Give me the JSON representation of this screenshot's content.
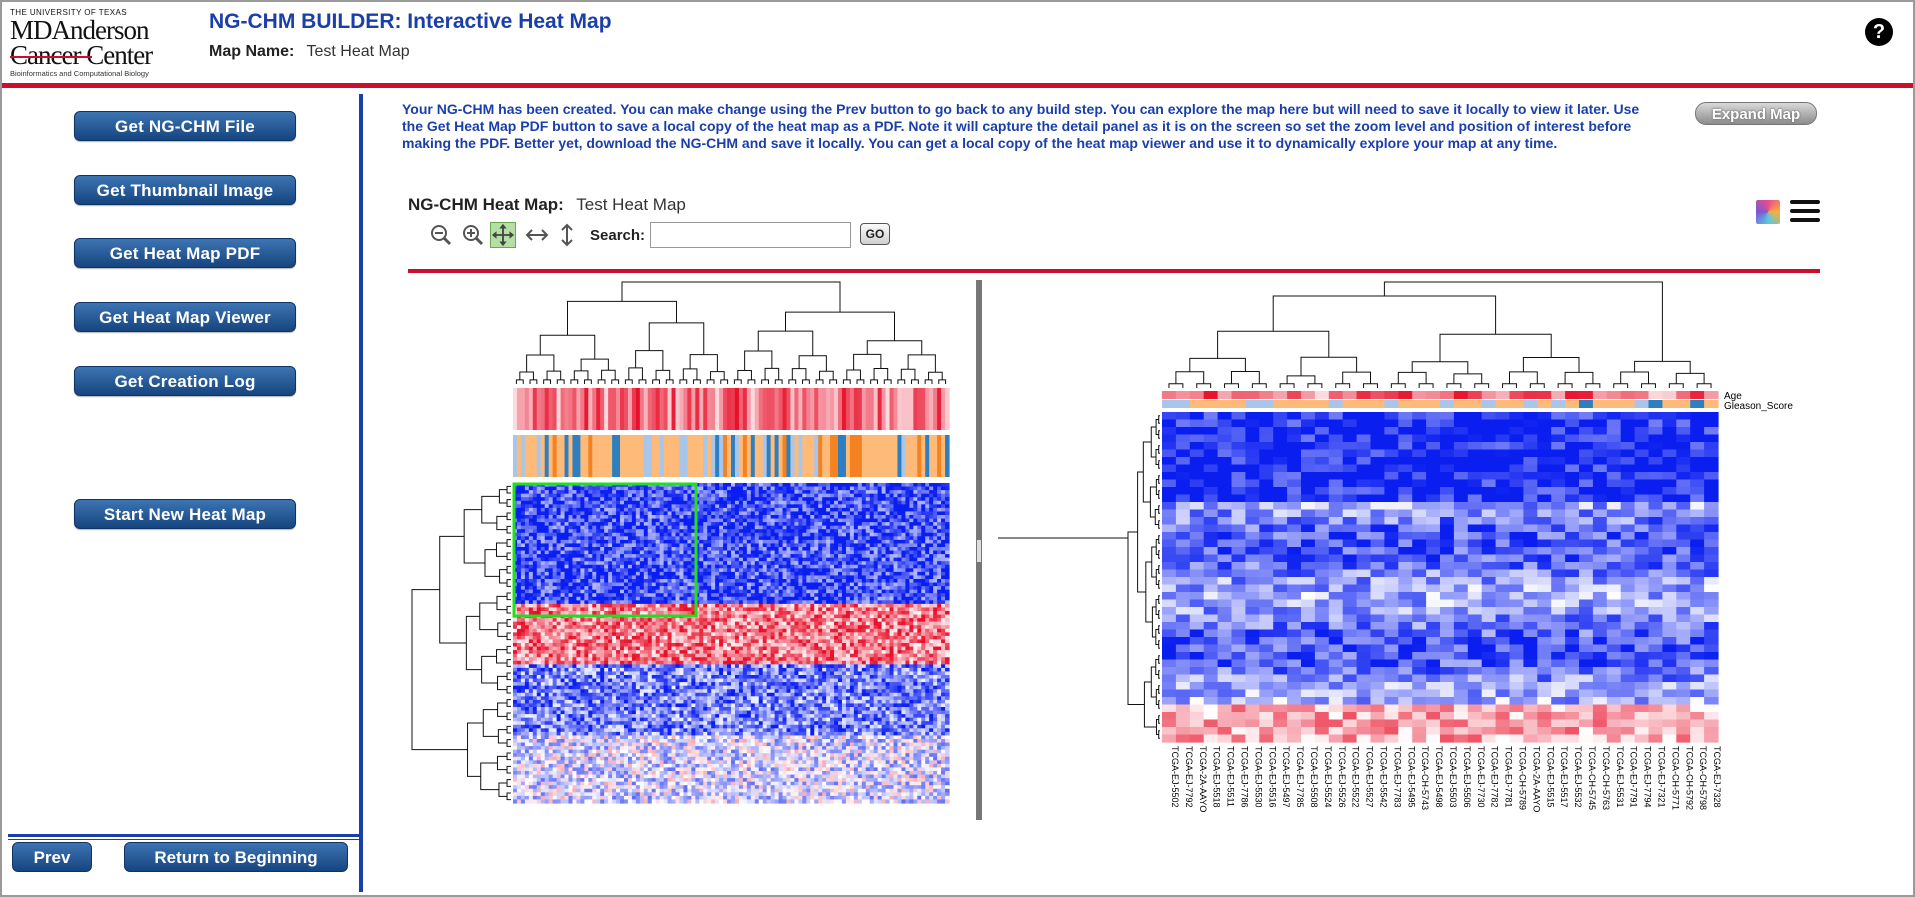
{
  "header": {
    "logo": {
      "line1": "THE UNIVERSITY OF TEXAS",
      "line2": "MDAnderson",
      "line3": "Cancer Center",
      "line4": "Bioinformatics and Computational Biology"
    },
    "title": "NG-CHM BUILDER: Interactive Heat Map",
    "map_name_label": "Map Name:",
    "map_name_value": "Test Heat Map",
    "help_label": "?"
  },
  "sidebar": {
    "buttons": [
      {
        "label": "Get NG-CHM File"
      },
      {
        "label": "Get Thumbnail Image"
      },
      {
        "label": "Get Heat Map PDF"
      },
      {
        "label": "Get Heat Map Viewer"
      },
      {
        "label": "Get Creation Log"
      },
      {
        "label": "Start New Heat Map"
      }
    ],
    "prev_label": "Prev",
    "return_label": "Return to Beginning"
  },
  "main": {
    "info_text": "Your NG-CHM has been created. You can make change using the Prev button to go back to any build step. You can explore the map here but will need to save it locally to view it later. Use the Get Heat Map PDF button to save a local copy of the heat map as a PDF. Note it will capture the detail panel as it is on the screen so set the zoom level and position of interest before making the PDF. Better yet, download the NG-CHM and save it locally. You can get a local copy of the heat map viewer and use it to dynamically explore your map at any time.",
    "expand_label": "Expand Map",
    "heatmap_label": "NG-CHM Heat Map:",
    "heatmap_name": "Test Heat Map",
    "search_label": "Search:",
    "search_value": "",
    "go_label": "GO",
    "tools": [
      "zoom-out-icon",
      "zoom-in-icon",
      "pan-icon",
      "horizontal-resize-icon",
      "vertical-resize-icon"
    ],
    "colors": {
      "accent_blue": "#1b3faa",
      "accent_red": "#c8102e",
      "heat_low": "#0a1ef0",
      "heat_mid": "#ffffff",
      "heat_high": "#e8102a"
    }
  },
  "detail": {
    "covariates": [
      "Age",
      "Gleason_Score"
    ],
    "column_labels": [
      "TCGA-EJ-5502",
      "TCGA-EJ-7792",
      "TCGA-2A-AAYO",
      "TCGA-EJ-5518",
      "TCGA-EJ-5511",
      "TCGA-EJ-7786",
      "TCGA-EJ-5530",
      "TCGA-EJ-5516",
      "TCGA-EJ-5497",
      "TCGA-EJ-7785",
      "TCGA-EJ-5508",
      "TCGA-EJ-5524",
      "TCGA-EJ-5526",
      "TCGA-EJ-5522",
      "TCGA-EJ-5527",
      "TCGA-EJ-5542",
      "TCGA-EJ-7783",
      "TCGA-EJ-5495",
      "TCGA-CH-5743",
      "TCGA-EJ-5498",
      "TCGA-EJ-5503",
      "TCGA-EJ-5506",
      "TCGA-EJ-7730",
      "TCGA-EJ-7782",
      "TCGA-EJ-7781",
      "TCGA-CH-5789",
      "TCGA-2A-AAYO",
      "TCGA-EJ-5515",
      "TCGA-EJ-5517",
      "TCGA-EJ-5532",
      "TCGA-CH-5745",
      "TCGA-CH-5763",
      "TCGA-EJ-5531",
      "TCGA-EJ-7791",
      "TCGA-EJ-7794",
      "TCGA-EJ-7321",
      "TCGA-CH-5771",
      "TCGA-CH-5792",
      "TCGA-CH-5798",
      "TCGA-EJ-7328"
    ]
  }
}
